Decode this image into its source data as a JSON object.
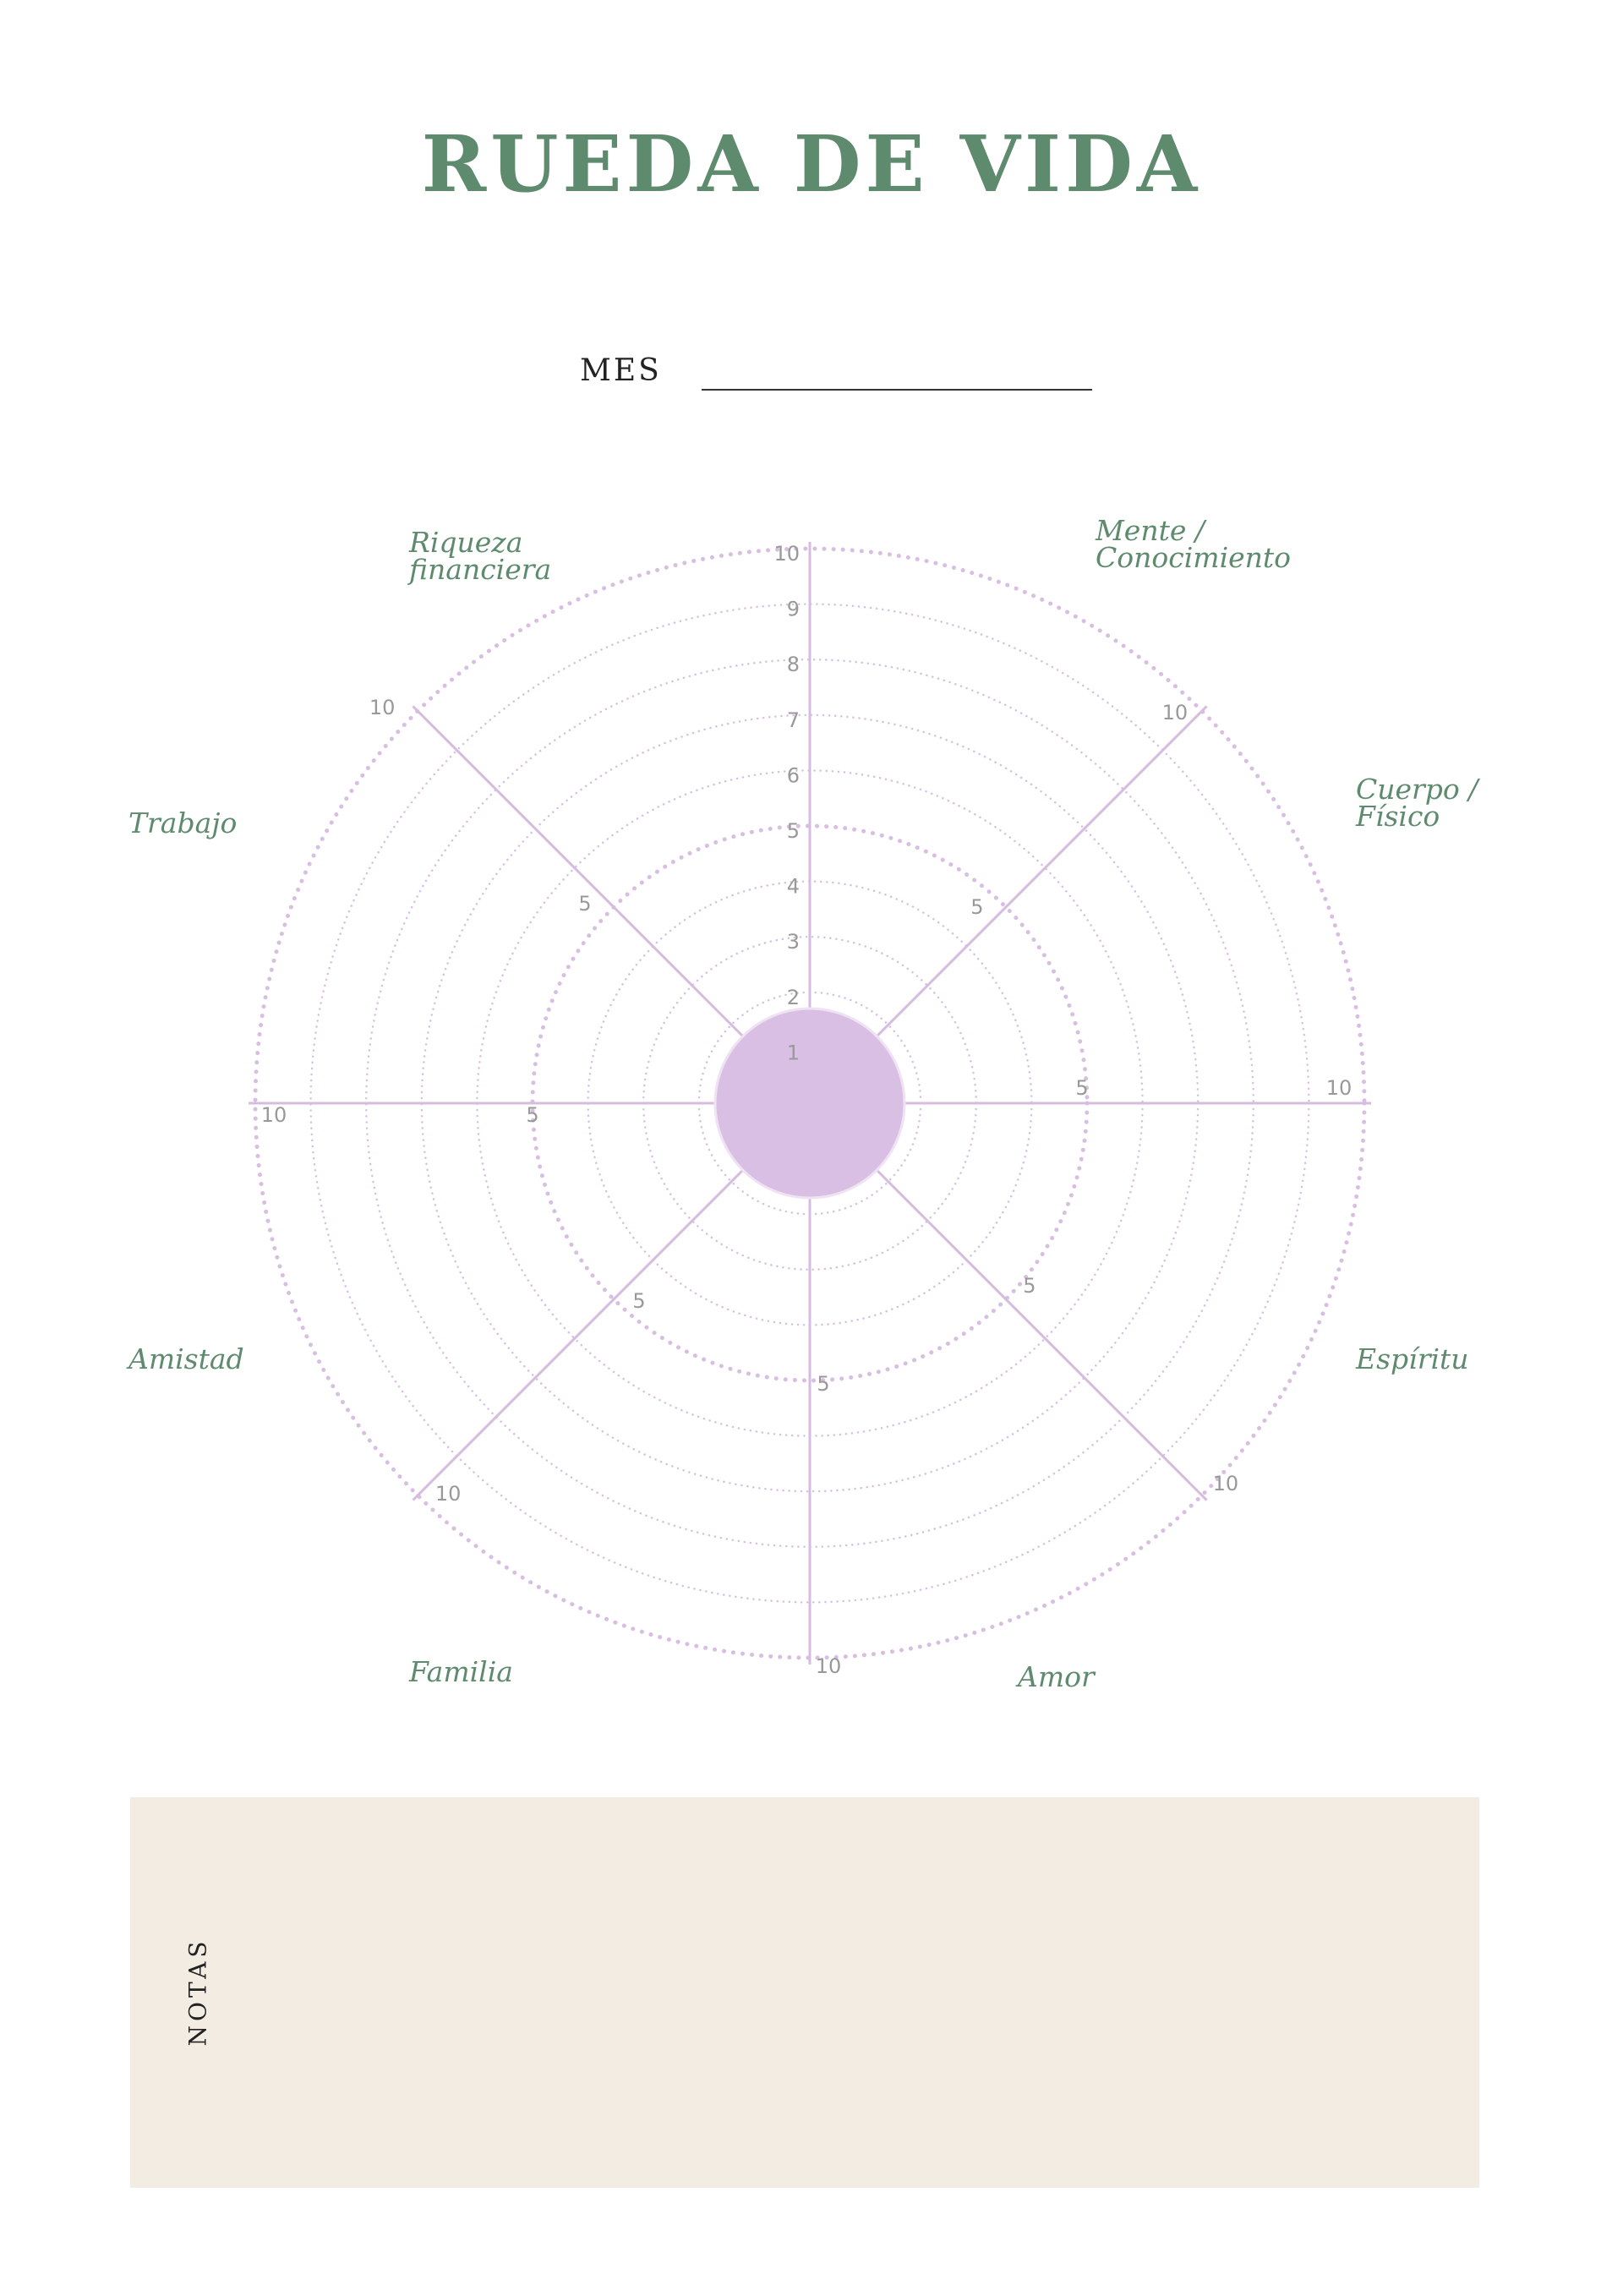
{
  "title": "RUEDA DE VIDA",
  "month_label": "MES",
  "wheel": {
    "scale_labels": [
      "1",
      "2",
      "3",
      "4",
      "5",
      "6",
      "7",
      "8",
      "9",
      "10"
    ],
    "spoke_mid_label": "5",
    "spoke_end_label": "10",
    "categories": [
      {
        "label": "Mente /\nConocimiento"
      },
      {
        "label": "Cuerpo /\nFísico"
      },
      {
        "label": "Espíritu"
      },
      {
        "label": "Amor"
      },
      {
        "label": "Familia"
      },
      {
        "label": "Amistad"
      },
      {
        "label": "Trabajo"
      },
      {
        "label": "Riqueza\nfinanciera"
      }
    ],
    "colors": {
      "ring": "#d8bfe1",
      "spoke": "#d6bde0",
      "hub": "#d8bfe3",
      "scale_text": "#999999"
    }
  },
  "notes_label": "NOTAS",
  "colors": {
    "accent_green": "#5e8a6e",
    "notes_background": "#f3ece3"
  }
}
